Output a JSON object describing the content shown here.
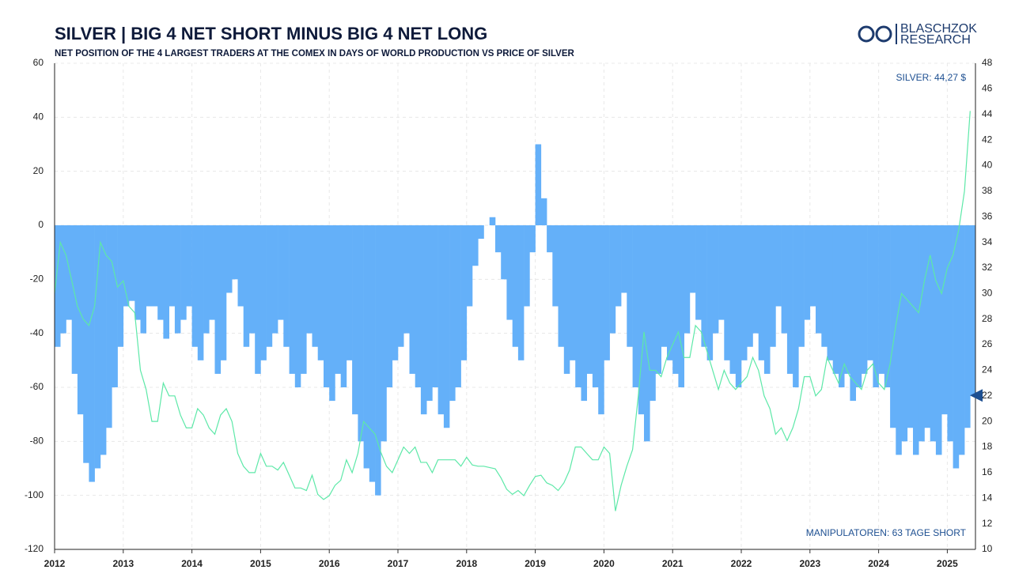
{
  "chart_data": {
    "type": "combo",
    "title": "SILVER | BIG 4 NET SHORT MINUS BIG 4 NET LONG",
    "subtitle": "NET POSITION OF THE 4 LARGEST TRADERS AT THE COMEX IN DAYS OF WORLD PRODUCTION VS PRICE OF SILVER",
    "logo": [
      "BLASCHZOK",
      "RESEARCH"
    ],
    "annotations": [
      "SILVER: 44,27 $",
      "MANIPULATOREN: 63 TAGE SHORT"
    ],
    "xlim": [
      2012,
      2025.41
    ],
    "xticks": [
      2012,
      2013,
      2014,
      2015,
      2016,
      2017,
      2018,
      2019,
      2020,
      2021,
      2022,
      2023,
      2024,
      2025
    ],
    "ylim": [
      -120,
      60
    ],
    "yticks": [
      -120,
      -100,
      -80,
      -60,
      -40,
      -20,
      0,
      20,
      40,
      60
    ],
    "y2lim": [
      10,
      48
    ],
    "y2ticks": [
      10,
      12,
      14,
      16,
      18,
      20,
      22,
      24,
      26,
      28,
      30,
      32,
      34,
      36,
      38,
      40,
      42,
      44,
      46,
      48
    ],
    "grid": true,
    "x": [
      2012,
      2012.083,
      2012.167,
      2012.25,
      2012.333,
      2012.417,
      2012.5,
      2012.583,
      2012.667,
      2012.75,
      2012.833,
      2012.917,
      2013,
      2013.083,
      2013.167,
      2013.25,
      2013.333,
      2013.417,
      2013.5,
      2013.583,
      2013.667,
      2013.75,
      2013.833,
      2013.917,
      2014,
      2014.083,
      2014.167,
      2014.25,
      2014.333,
      2014.417,
      2014.5,
      2014.583,
      2014.667,
      2014.75,
      2014.833,
      2014.917,
      2015,
      2015.083,
      2015.167,
      2015.25,
      2015.333,
      2015.417,
      2015.5,
      2015.583,
      2015.667,
      2015.75,
      2015.833,
      2015.917,
      2016,
      2016.083,
      2016.167,
      2016.25,
      2016.333,
      2016.417,
      2016.5,
      2016.583,
      2016.667,
      2016.75,
      2016.833,
      2016.917,
      2017,
      2017.083,
      2017.167,
      2017.25,
      2017.333,
      2017.417,
      2017.5,
      2017.583,
      2017.667,
      2017.75,
      2017.833,
      2017.917,
      2018,
      2018.083,
      2018.167,
      2018.25,
      2018.333,
      2018.417,
      2018.5,
      2018.583,
      2018.667,
      2018.75,
      2018.833,
      2018.917,
      2019,
      2019.083,
      2019.167,
      2019.25,
      2019.333,
      2019.417,
      2019.5,
      2019.583,
      2019.667,
      2019.75,
      2019.833,
      2019.917,
      2020,
      2020.083,
      2020.167,
      2020.25,
      2020.333,
      2020.417,
      2020.5,
      2020.583,
      2020.667,
      2020.75,
      2020.833,
      2020.917,
      2021,
      2021.083,
      2021.167,
      2021.25,
      2021.333,
      2021.417,
      2021.5,
      2021.583,
      2021.667,
      2021.75,
      2021.833,
      2021.917,
      2022,
      2022.083,
      2022.167,
      2022.25,
      2022.333,
      2022.417,
      2022.5,
      2022.583,
      2022.667,
      2022.75,
      2022.833,
      2022.917,
      2023,
      2023.083,
      2023.167,
      2023.25,
      2023.333,
      2023.417,
      2023.5,
      2023.583,
      2023.667,
      2023.75,
      2023.833,
      2023.917,
      2024,
      2024.083,
      2024.167,
      2024.25,
      2024.333,
      2024.417,
      2024.5,
      2024.583,
      2024.667,
      2024.75,
      2024.833,
      2024.917,
      2025,
      2025.083,
      2025.167,
      2025.25,
      2025.333
    ],
    "series": [
      {
        "type": "bar",
        "color": "#64b0f9",
        "values": [
          -45,
          -40,
          -35,
          -55,
          -70,
          -88,
          -95,
          -90,
          -85,
          -75,
          -60,
          -45,
          -30,
          -28,
          -35,
          -40,
          -30,
          -30,
          -35,
          -42,
          -30,
          -40,
          -35,
          -30,
          -45,
          -50,
          -40,
          -35,
          -55,
          -50,
          -25,
          -20,
          -30,
          -45,
          -40,
          -55,
          -50,
          -45,
          -40,
          -35,
          -45,
          -55,
          -60,
          -55,
          -40,
          -45,
          -50,
          -60,
          -65,
          -55,
          -60,
          -50,
          -70,
          -80,
          -90,
          -95,
          -100,
          -80,
          -60,
          -50,
          -45,
          -40,
          -55,
          -60,
          -70,
          -65,
          -60,
          -70,
          -75,
          -65,
          -60,
          -50,
          -30,
          -15,
          -5,
          0,
          3,
          -10,
          -20,
          -35,
          -45,
          -50,
          -30,
          -10,
          30,
          10,
          -10,
          -30,
          -45,
          -55,
          -50,
          -60,
          -65,
          -55,
          -60,
          -70,
          -50,
          -40,
          -30,
          -25,
          -45,
          -60,
          -70,
          -80,
          -65,
          -55,
          -45,
          -50,
          -55,
          -60,
          -40,
          -25,
          -35,
          -45,
          -50,
          -40,
          -35,
          -50,
          -55,
          -60,
          -50,
          -45,
          -40,
          -50,
          -55,
          -45,
          -30,
          -40,
          -55,
          -60,
          -45,
          -35,
          -30,
          -40,
          -45,
          -50,
          -55,
          -60,
          -55,
          -65,
          -60,
          -55,
          -50,
          -60,
          -55,
          -60,
          -75,
          -85,
          -80,
          -75,
          -85,
          -80,
          -75,
          -80,
          -85,
          -70,
          -80,
          -90,
          -85,
          -75,
          -63
        ]
      },
      {
        "type": "line",
        "axis": "y2",
        "color": "#5de8a8",
        "values": [
          30,
          34,
          33,
          31,
          29,
          28,
          27.5,
          29,
          34,
          33,
          32.5,
          30.5,
          31,
          29,
          28.5,
          24,
          22.5,
          20,
          20,
          23,
          22,
          22,
          20.5,
          19.5,
          19.5,
          21,
          20.5,
          19.5,
          19,
          20.5,
          21,
          20,
          17.5,
          16.5,
          16,
          16,
          17.5,
          16.5,
          16.5,
          16.2,
          16.8,
          15.8,
          14.8,
          14.8,
          14.6,
          15.8,
          14.3,
          13.9,
          14.2,
          15,
          15.4,
          17,
          16,
          17.5,
          20,
          19.5,
          19,
          17.6,
          16.5,
          16,
          17,
          18,
          17.5,
          18,
          16.8,
          16.8,
          16,
          17,
          17,
          17,
          17,
          16.5,
          17.2,
          16.6,
          16.5,
          16.5,
          16.4,
          16.3,
          15.6,
          14.7,
          14.3,
          14.6,
          14.2,
          15,
          15.7,
          15.8,
          15.2,
          15,
          14.6,
          15.2,
          16.2,
          18,
          18,
          17.5,
          17,
          17,
          18,
          17.5,
          13,
          15,
          16.5,
          17.8,
          22,
          27,
          24,
          24,
          23.5,
          25,
          26,
          27,
          25,
          25,
          27.5,
          27,
          25.5,
          24,
          22.5,
          24,
          23,
          22.5,
          23,
          23.5,
          25,
          24,
          22,
          21,
          19,
          19.5,
          18.5,
          19.5,
          21,
          23.5,
          23.5,
          22,
          22.5,
          25,
          24,
          23,
          24.5,
          23.5,
          23,
          22.5,
          24,
          24.5,
          23,
          22.5,
          24.5,
          27.5,
          30,
          29.5,
          29,
          28.5,
          31,
          33,
          31,
          30,
          32,
          33,
          35,
          38,
          44.27
        ]
      }
    ]
  }
}
